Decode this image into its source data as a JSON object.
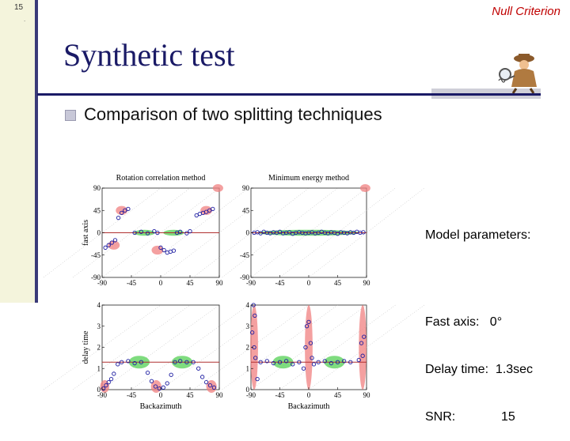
{
  "slide": {
    "number": "15",
    "dot": ".",
    "header_right": "Null Criterion",
    "title": "Synthetic test",
    "bullet": "Comparison of two splitting techniques"
  },
  "model_params": {
    "heading": "Model parameters:",
    "fast_axis": "Fast axis:   0°",
    "delay_time": "Delay time:  1.3sec",
    "snr": "SNR:             15"
  },
  "colors": {
    "title": "#1a1a66",
    "header_right": "#c00000",
    "green_region": "#5fd35f",
    "red_region": "#f08080",
    "marker": "#1a1aa0",
    "ref_line": "#b03030"
  },
  "chart_data": [
    {
      "type": "scatter",
      "title": "Rotation correlation method",
      "ylabel": "fast axis",
      "xlabel": "",
      "xlim": [
        -90,
        90
      ],
      "ylim": [
        -90,
        90
      ],
      "xticks": [
        "-90",
        "-45",
        "0",
        "45",
        "90"
      ],
      "yticks": [
        "90",
        "45",
        "0",
        "-45",
        "-90"
      ],
      "reference_line": 0,
      "points": [
        [
          -85,
          -30
        ],
        [
          -80,
          -25
        ],
        [
          -75,
          -20
        ],
        [
          -70,
          -15
        ],
        [
          -65,
          30
        ],
        [
          -60,
          40
        ],
        [
          -55,
          45
        ],
        [
          -50,
          48
        ],
        [
          -40,
          0
        ],
        [
          -30,
          2
        ],
        [
          -20,
          -1
        ],
        [
          -10,
          3
        ],
        [
          -5,
          0
        ],
        [
          0,
          -30
        ],
        [
          5,
          -35
        ],
        [
          10,
          -40
        ],
        [
          15,
          -38
        ],
        [
          20,
          -36
        ],
        [
          25,
          0
        ],
        [
          30,
          2
        ],
        [
          40,
          -1
        ],
        [
          45,
          3
        ],
        [
          55,
          35
        ],
        [
          60,
          38
        ],
        [
          65,
          40
        ],
        [
          70,
          42
        ],
        [
          75,
          45
        ],
        [
          80,
          48
        ]
      ]
    },
    {
      "type": "scatter",
      "title": "Minimum energy method",
      "ylabel": "",
      "xlabel": "",
      "xlim": [
        -90,
        90
      ],
      "ylim": [
        -90,
        90
      ],
      "xticks": [
        "-90",
        "-45",
        "0",
        "45",
        "90"
      ],
      "yticks": [
        "90",
        "45",
        "0",
        "-45",
        "-90"
      ],
      "reference_line": 0,
      "points": [
        [
          -85,
          0
        ],
        [
          -80,
          1
        ],
        [
          -75,
          -1
        ],
        [
          -70,
          2
        ],
        [
          -65,
          0
        ],
        [
          -60,
          -1
        ],
        [
          -55,
          1
        ],
        [
          -50,
          0
        ],
        [
          -45,
          2
        ],
        [
          -40,
          -1
        ],
        [
          -35,
          0
        ],
        [
          -30,
          1
        ],
        [
          -25,
          -2
        ],
        [
          -20,
          0
        ],
        [
          -15,
          1
        ],
        [
          -10,
          0
        ],
        [
          -5,
          -1
        ],
        [
          0,
          0
        ],
        [
          5,
          1
        ],
        [
          10,
          -1
        ],
        [
          15,
          0
        ],
        [
          20,
          2
        ],
        [
          25,
          0
        ],
        [
          30,
          -1
        ],
        [
          35,
          1
        ],
        [
          40,
          0
        ],
        [
          45,
          -2
        ],
        [
          50,
          1
        ],
        [
          55,
          0
        ],
        [
          60,
          -1
        ],
        [
          65,
          1
        ],
        [
          70,
          0
        ],
        [
          75,
          2
        ],
        [
          80,
          0
        ],
        [
          85,
          1
        ]
      ]
    },
    {
      "type": "scatter",
      "title": "",
      "ylabel": "delay time",
      "xlabel": "Backazimuth",
      "xlim": [
        -90,
        90
      ],
      "ylim": [
        0,
        4
      ],
      "xticks": [
        "-90",
        "-45",
        "0",
        "45",
        "90"
      ],
      "yticks": [
        "4",
        "3",
        "2",
        "1",
        "0"
      ],
      "reference_line": 1.3,
      "points": [
        [
          -88,
          0.05
        ],
        [
          -84,
          0.2
        ],
        [
          -80,
          0.35
        ],
        [
          -76,
          0.5
        ],
        [
          -72,
          0.75
        ],
        [
          -66,
          1.2
        ],
        [
          -60,
          1.3
        ],
        [
          -50,
          1.35
        ],
        [
          -40,
          1.25
        ],
        [
          -30,
          1.3
        ],
        [
          -20,
          0.8
        ],
        [
          -14,
          0.4
        ],
        [
          -8,
          0.15
        ],
        [
          -2,
          0.05
        ],
        [
          4,
          0.1
        ],
        [
          10,
          0.3
        ],
        [
          16,
          0.7
        ],
        [
          22,
          1.3
        ],
        [
          30,
          1.35
        ],
        [
          40,
          1.3
        ],
        [
          50,
          1.3
        ],
        [
          58,
          1.0
        ],
        [
          64,
          0.6
        ],
        [
          70,
          0.35
        ],
        [
          76,
          0.2
        ],
        [
          82,
          0.1
        ]
      ]
    },
    {
      "type": "scatter",
      "title": "",
      "ylabel": "",
      "xlabel": "Backazimuth",
      "xlim": [
        -90,
        90
      ],
      "ylim": [
        0,
        4
      ],
      "xticks": [
        "-90",
        "-45",
        "0",
        "45",
        "90"
      ],
      "yticks": [
        "4",
        "3",
        "2",
        "1",
        "0"
      ],
      "reference_line": 1.3,
      "points": [
        [
          -86,
          4.0
        ],
        [
          -84,
          3.5
        ],
        [
          -88,
          2.7
        ],
        [
          -85,
          2.0
        ],
        [
          -83,
          1.5
        ],
        [
          -80,
          0.5
        ],
        [
          -75,
          1.3
        ],
        [
          -65,
          1.35
        ],
        [
          -55,
          1.25
        ],
        [
          -45,
          1.3
        ],
        [
          -35,
          1.35
        ],
        [
          -25,
          1.2
        ],
        [
          -15,
          1.3
        ],
        [
          -8,
          1.0
        ],
        [
          -5,
          2.0
        ],
        [
          -3,
          3.0
        ],
        [
          0,
          3.2
        ],
        [
          3,
          2.2
        ],
        [
          5,
          1.5
        ],
        [
          8,
          1.2
        ],
        [
          15,
          1.3
        ],
        [
          25,
          1.35
        ],
        [
          35,
          1.25
        ],
        [
          45,
          1.3
        ],
        [
          55,
          1.35
        ],
        [
          65,
          1.3
        ],
        [
          78,
          1.4
        ],
        [
          82,
          2.2
        ],
        [
          86,
          2.5
        ],
        [
          84,
          1.6
        ]
      ]
    }
  ]
}
